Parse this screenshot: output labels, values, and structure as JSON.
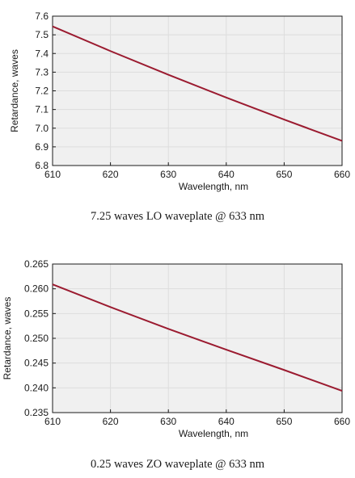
{
  "chart_data": [
    {
      "type": "line",
      "title": "",
      "xlabel": "Wavelength, nm",
      "ylabel": "Retardance, waves",
      "xlim": [
        610,
        660
      ],
      "ylim": [
        6.8,
        7.6
      ],
      "x_ticks": [
        "610",
        "620",
        "630",
        "640",
        "650",
        "660"
      ],
      "y_ticks": [
        "6.8",
        "6.9",
        "7.0",
        "7.1",
        "7.2",
        "7.3",
        "7.4",
        "7.5",
        "7.6"
      ],
      "grid": true,
      "series": [
        {
          "x": [
            610,
            620,
            630,
            640,
            650,
            660
          ],
          "y": [
            7.545,
            7.413,
            7.286,
            7.164,
            7.046,
            6.932
          ]
        }
      ],
      "colors": {
        "line": "#9b1b30",
        "plot_bg": "#f0f0f0",
        "grid": "#dddddd"
      },
      "caption": "7.25 waves LO waveplate @ 633 nm"
    },
    {
      "type": "line",
      "title": "",
      "xlabel": "Wavelength, nm",
      "ylabel": "Retardance, waves",
      "xlim": [
        610,
        660
      ],
      "ylim": [
        0.235,
        0.265
      ],
      "x_ticks": [
        "610",
        "620",
        "630",
        "640",
        "650",
        "660"
      ],
      "y_ticks": [
        "0.235",
        "0.240",
        "0.245",
        "0.250",
        "0.255",
        "0.260",
        "0.265"
      ],
      "grid": true,
      "series": [
        {
          "x": [
            610,
            620,
            630,
            640,
            650,
            660
          ],
          "y": [
            0.2609,
            0.2563,
            0.2519,
            0.2477,
            0.2436,
            0.2394
          ]
        }
      ],
      "colors": {
        "line": "#9b1b30",
        "plot_bg": "#f0f0f0",
        "grid": "#dddddd"
      },
      "caption": "0.25 waves ZO waveplate @ 633 nm"
    }
  ]
}
